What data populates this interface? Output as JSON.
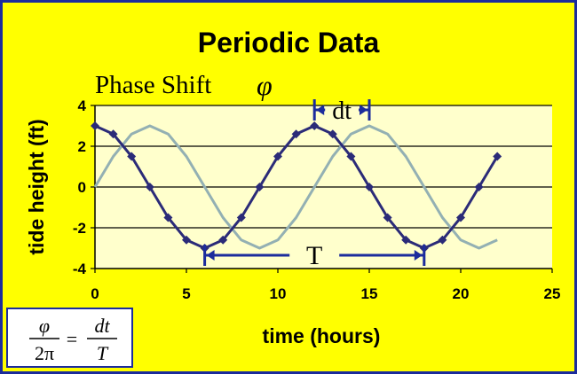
{
  "chart_data": {
    "type": "line",
    "title": "Periodic Data",
    "subtitle": "Phase Shift",
    "subtitle_symbol": "φ",
    "xlabel": "time (hours)",
    "ylabel": "tide height (ft)",
    "xlim": [
      0,
      25
    ],
    "ylim": [
      -4,
      4
    ],
    "x_ticks": [
      0,
      5,
      10,
      15,
      20,
      25
    ],
    "y_ticks": [
      -4,
      -2,
      0,
      2,
      4
    ],
    "grid": true,
    "plot_background": "#ffffcc",
    "series": [
      {
        "color": "#2b2b78",
        "marker": "diamond",
        "x": [
          0,
          1,
          2,
          3,
          4,
          5,
          6,
          7,
          8,
          9,
          10,
          11,
          12,
          13,
          14,
          15,
          16,
          17,
          18,
          19,
          20,
          21,
          22
        ],
        "y": [
          3,
          2.6,
          1.5,
          0,
          -1.5,
          -2.6,
          -3,
          -2.6,
          -1.5,
          0,
          1.5,
          2.6,
          3,
          2.6,
          1.5,
          0,
          -1.5,
          -2.6,
          -3,
          -2.6,
          -1.5,
          0,
          1.5
        ]
      },
      {
        "color": "#93b0b3",
        "marker": "none",
        "x": [
          0,
          1,
          2,
          3,
          4,
          5,
          6,
          7,
          8,
          9,
          10,
          11,
          12,
          13,
          14,
          15,
          16,
          17,
          18,
          19,
          20,
          21,
          22
        ],
        "y": [
          0,
          1.5,
          2.6,
          3,
          2.6,
          1.5,
          0,
          -1.5,
          -2.6,
          -3,
          -2.6,
          -1.5,
          0,
          1.5,
          2.6,
          3,
          2.6,
          1.5,
          0,
          -1.5,
          -2.6,
          -3,
          -2.6
        ]
      }
    ],
    "annotations": {
      "dt": {
        "label": "dt",
        "x_from": 12,
        "x_to": 15,
        "color": "#1c2c9c"
      },
      "T": {
        "label": "T",
        "x_from": 6,
        "x_to": 18,
        "color": "#1c2c9c"
      }
    }
  },
  "formula": {
    "numerator_left": "φ",
    "denominator_left": "2π",
    "equals": "=",
    "numerator_right": "dt",
    "denominator_right": "T"
  },
  "colors": {
    "background": "#ffff00",
    "border": "#1c2c9c"
  }
}
